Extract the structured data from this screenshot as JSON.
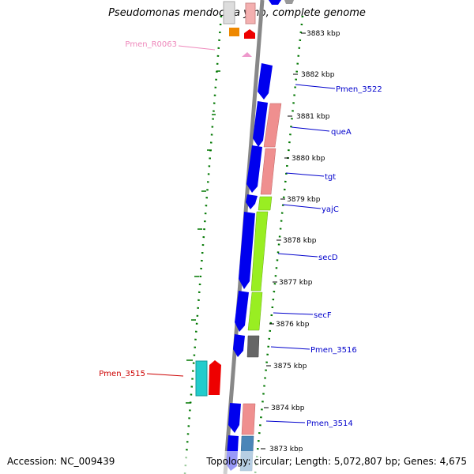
{
  "title": "Pseudomonas mendocina ymp, complete genome",
  "footer": {
    "accession": "Accession: NC_009439",
    "topology": "Topology: circular; Length: 5,072,807 bp; Genes: 4,675"
  },
  "scale_ticks": [
    {
      "label": "3883 kbp"
    },
    {
      "label": "3882 kbp"
    },
    {
      "label": "3881 kbp"
    },
    {
      "label": "3880 kbp"
    },
    {
      "label": "3879 kbp"
    },
    {
      "label": "3878 kbp"
    },
    {
      "label": "3877 kbp"
    },
    {
      "label": "3876 kbp"
    },
    {
      "label": "3875 kbp"
    },
    {
      "label": "3874 kbp"
    },
    {
      "label": "3873 kbp"
    }
  ],
  "gene_labels": [
    {
      "name": "Pmen_R0063",
      "color": "#ee88bb"
    },
    {
      "name": "Pmen_3522",
      "color": "#0000cc"
    },
    {
      "name": "queA",
      "color": "#0000cc"
    },
    {
      "name": "tgt",
      "color": "#0000cc"
    },
    {
      "name": "yajC",
      "color": "#0000cc"
    },
    {
      "name": "secD",
      "color": "#0000cc"
    },
    {
      "name": "secF",
      "color": "#0000cc"
    },
    {
      "name": "Pmen_3516",
      "color": "#0000cc"
    },
    {
      "name": "Pmen_3515",
      "color": "#cc0000"
    },
    {
      "name": "Pmen_3514",
      "color": "#0000cc"
    }
  ],
  "colors": {
    "cds_blue": "#0000ee",
    "cog_pink": "#ef8f8f",
    "cog_green": "#99ee22",
    "cog_gray": "#666666",
    "cog_steel": "#4a86b8",
    "cog_teal": "#22cccc",
    "red": "#ee0000",
    "orange": "#ee8800",
    "backbone": "#888888",
    "dotted_track": "#007700"
  }
}
